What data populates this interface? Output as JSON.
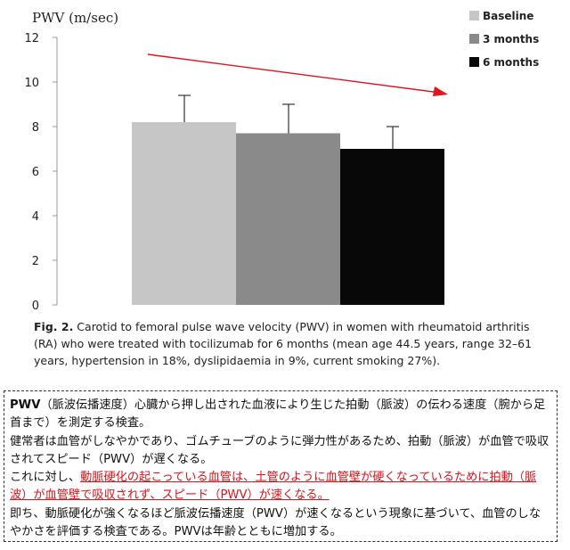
{
  "chart_data": {
    "type": "bar",
    "ylabel": "PWV (m/sec)",
    "ylim": [
      0,
      12
    ],
    "yticks": [
      0,
      2,
      4,
      6,
      8,
      10,
      12
    ],
    "categories": [
      "Baseline",
      "3 months",
      "6 months"
    ],
    "values": [
      8.2,
      7.7,
      7.0
    ],
    "error_upper": [
      9.4,
      9.0,
      8.0
    ],
    "colors": [
      "#c6c6c6",
      "#8a8a8a",
      "#080808"
    ],
    "legend": [
      "Baseline",
      "3 months",
      "6 months"
    ],
    "legend_position": "top-right",
    "grid": false,
    "annotation": {
      "type": "arrow",
      "color": "#e3121b",
      "direction": "downward-trend"
    }
  },
  "caption": {
    "fig_label": "Fig. 2.",
    "text": " Carotid to femoral pulse wave velocity (PWV) in women with rheumatoid arthritis (RA) who were treated with tocilizumab for 6 months (mean age 44.5 years, range 32–61 years, hypertension in 18%, dyslipidaemia in 9%, current smoking 27%)."
  },
  "note": {
    "p1_keyword": "PWV",
    "p1_text": "（脈波伝播速度）心臓から押し出された血液により生じた拍動（脈波）の伝わる速度（腕から足首まで）を測定する検査。",
    "p2_text": "健常者は血管がしなやかであり、ゴムチューブのように弾力性があるため、拍動（脈波）が血管で吸収されてスピード（PWV）が遅くなる。",
    "p3_prefix": "これに対し、",
    "p3_red": "動脈硬化の起こっている血管は、土管のように血管壁が硬くなっているために拍動（脈波）が血管壁で吸収されず、スピード（PWV）が速くなる。",
    "p4_text": "即ち、動脈硬化が強くなるほど脈波伝播速度（PWV）が速くなるという現象に基づいて、血管のしなやかさを評価する検査である。PWVは年齢とともに増加する。"
  }
}
